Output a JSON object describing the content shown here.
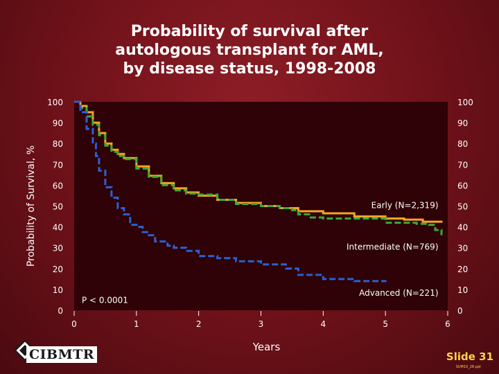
{
  "title_lines": [
    "Probability of survival after",
    "autologous transplant for AML,",
    "by disease status, 1998-2008"
  ],
  "chart_data": {
    "type": "line",
    "title": "Probability of survival after autologous transplant for AML, by disease status, 1998-2008",
    "xlabel": "Years",
    "ylabel": "Probability of Survival, %",
    "xlim": [
      0,
      6
    ],
    "ylim": [
      0,
      100
    ],
    "x_ticks": [
      "0",
      "1",
      "2",
      "3",
      "4",
      "5",
      "6"
    ],
    "y_ticks": [
      "0",
      "10",
      "20",
      "30",
      "40",
      "50",
      "60",
      "70",
      "80",
      "90",
      "100"
    ],
    "pvalue_label": "P < 0.0001",
    "series": [
      {
        "name": "Early (N=2,319)",
        "color": "#f5a623",
        "style": "solid",
        "x": [
          0,
          0.1,
          0.2,
          0.3,
          0.4,
          0.5,
          0.6,
          0.7,
          0.8,
          1.0,
          1.2,
          1.4,
          1.6,
          1.8,
          2.0,
          2.3,
          2.6,
          3.0,
          3.3,
          3.6,
          4.0,
          4.5,
          5.0,
          5.3,
          5.6,
          5.9
        ],
        "y": [
          100,
          98,
          95,
          90,
          85,
          80,
          77,
          75,
          73,
          69,
          64.5,
          61,
          58.5,
          56.5,
          55,
          53,
          51.5,
          50,
          49,
          47.5,
          46.5,
          45,
          44,
          43.5,
          42.5,
          42
        ]
      },
      {
        "name": "Intermediate (N=769)",
        "color": "#3aa83a",
        "style": "dashed",
        "x": [
          0,
          0.1,
          0.2,
          0.3,
          0.4,
          0.5,
          0.6,
          0.7,
          0.8,
          1.0,
          1.2,
          1.4,
          1.6,
          1.8,
          2.0,
          2.3,
          2.6,
          3.0,
          3.3,
          3.5,
          3.6,
          3.8,
          4.0,
          4.5,
          5.0,
          5.3,
          5.5,
          5.7,
          5.8,
          5.9
        ],
        "y": [
          100,
          97,
          93,
          89,
          84,
          79,
          76,
          74,
          72.5,
          68,
          64,
          60,
          57.5,
          56,
          55.5,
          53,
          51,
          50,
          49,
          48,
          46,
          44.5,
          44,
          44,
          42,
          42,
          41.5,
          41,
          38.5,
          36
        ]
      },
      {
        "name": "Advanced (N=221)",
        "color": "#2d5fd6",
        "style": "dashed",
        "x": [
          0,
          0.1,
          0.2,
          0.3,
          0.35,
          0.4,
          0.5,
          0.6,
          0.7,
          0.8,
          0.9,
          1.0,
          1.1,
          1.2,
          1.3,
          1.5,
          1.6,
          1.8,
          2.0,
          2.3,
          2.6,
          3.0,
          3.3,
          3.4,
          3.6,
          4.0,
          4.5,
          5.0
        ],
        "y": [
          100,
          95,
          87,
          80,
          74,
          67,
          59,
          54,
          49,
          46,
          41,
          40,
          37.5,
          36,
          33,
          31,
          30,
          28.5,
          26,
          25,
          23.5,
          22,
          22,
          20,
          17,
          15,
          14,
          13.5
        ]
      }
    ],
    "series_labels": [
      {
        "text": "Early (N=2,319)",
        "x": 5.85,
        "y": 49
      },
      {
        "text": "Intermediate (N=769)",
        "x": 5.85,
        "y": 29
      },
      {
        "text": "Advanced (N=221)",
        "x": 5.85,
        "y": 7
      }
    ]
  },
  "logo_text": "CIBMTR",
  "slide_label": "Slide 31",
  "slide_code": "SUM10_28.ppt"
}
